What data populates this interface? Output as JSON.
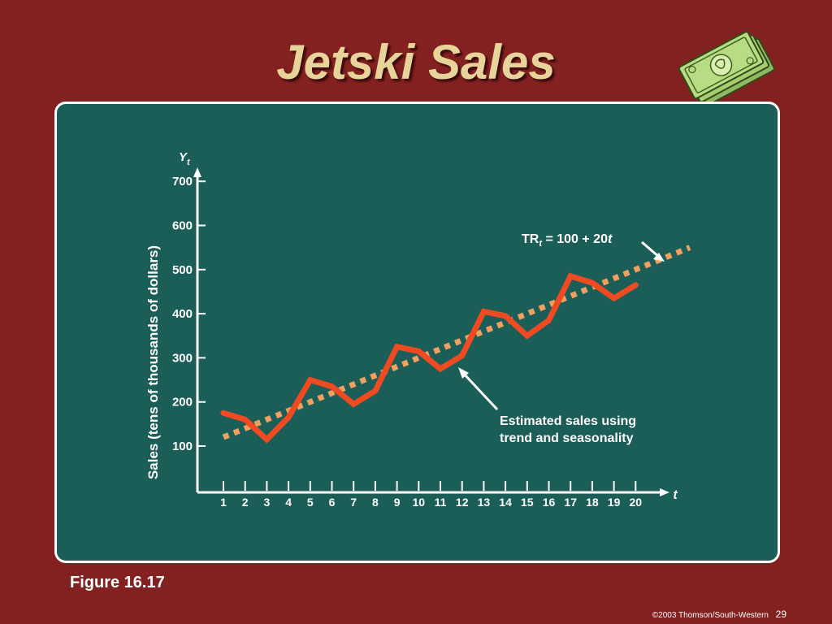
{
  "slide": {
    "title": "Jetski Sales",
    "figure_label": "Figure 16.17",
    "copyright": "©2003 Thomson/South-Western",
    "page_number": "29"
  },
  "icon": {
    "name": "money-stack-icon"
  },
  "colors": {
    "background": "#832020",
    "panel": "#1b5e57",
    "title": "#e8d49a",
    "sales_line": "#f04a22",
    "trend_line": "#f0a060"
  },
  "chart_data": {
    "type": "line",
    "xlabel": "t",
    "ylabel": "Sales (tens of thousands of dollars)",
    "yaxis_symbol": "Y",
    "yaxis_subscript": "t",
    "ylim": [
      0,
      700
    ],
    "yticks": [
      100,
      200,
      300,
      400,
      500,
      600,
      700
    ],
    "x": [
      1,
      2,
      3,
      4,
      5,
      6,
      7,
      8,
      9,
      10,
      11,
      12,
      13,
      14,
      15,
      16,
      17,
      18,
      19,
      20
    ],
    "series": [
      {
        "style": "solid",
        "values": [
          175,
          160,
          115,
          165,
          250,
          235,
          195,
          225,
          325,
          315,
          275,
          305,
          405,
          395,
          350,
          385,
          485,
          470,
          435,
          465
        ]
      },
      {
        "style": "dotted",
        "x_range": [
          1,
          22.5
        ],
        "intercept": 100,
        "slope": 20
      }
    ],
    "annotations": {
      "trend": {
        "prefix": "TR",
        "subscript": "t",
        "equation": " = 100 + 20",
        "variable": "t"
      },
      "estimated_line1": "Estimated sales using",
      "estimated_line2": "trend and seasonality"
    }
  }
}
